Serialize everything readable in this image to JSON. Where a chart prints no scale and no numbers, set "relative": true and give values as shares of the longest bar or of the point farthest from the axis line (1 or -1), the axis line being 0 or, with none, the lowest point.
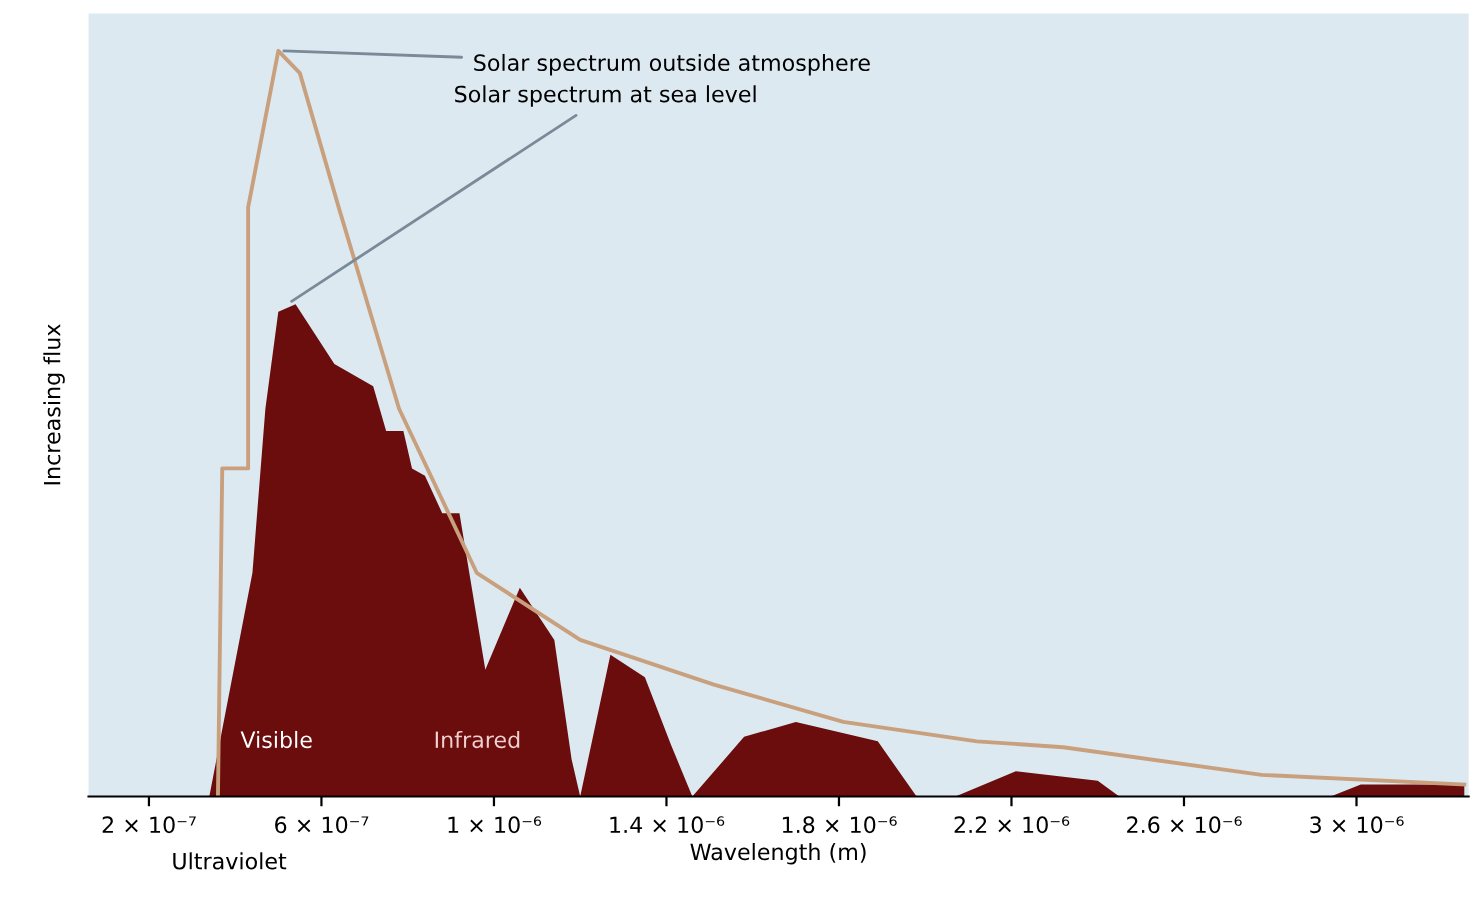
{
  "chart_data": {
    "type": "area",
    "relative": true,
    "xlabel": "Wavelength (m)",
    "ylabel": "Increasing flux",
    "xlim": [
      6e-08,
      3.26e-06
    ],
    "xticks": [
      {
        "value": 2e-07,
        "label": "2 × 10⁻⁷"
      },
      {
        "value": 6e-07,
        "label": "6 × 10⁻⁷"
      },
      {
        "value": 1e-06,
        "label": "1 × 10⁻⁶"
      },
      {
        "value": 1.4e-06,
        "label": "1.4 × 10⁻⁶"
      },
      {
        "value": 1.8e-06,
        "label": "1.8 × 10⁻⁶"
      },
      {
        "value": 2.2e-06,
        "label": "2.2 × 10⁻⁶"
      },
      {
        "value": 2.6e-06,
        "label": "2.6 × 10⁻⁶"
      },
      {
        "value": 3e-06,
        "label": "3 × 10⁻⁶"
      }
    ],
    "series": [
      {
        "type": "line",
        "color": "#c9a07e",
        "x": [
          3.6e-07,
          3.7e-07,
          4.3e-07,
          4.3e-07,
          5e-07,
          5.5e-07,
          6.4e-07,
          7.8e-07,
          9.6e-07,
          1.2e-06,
          1.51e-06,
          1.81e-06,
          2.12e-06,
          2.32e-06,
          2.78e-06,
          3.25e-06
        ],
        "values": [
          0,
          0.44,
          0.44,
          0.79,
          1,
          0.97,
          0.79,
          0.52,
          0.3,
          0.21,
          0.15,
          0.1,
          0.074,
          0.066,
          0.029,
          0.016
        ]
      },
      {
        "color": "#6b0d0d",
        "x": [
          3.4e-07,
          4.4e-07,
          4.7e-07,
          5e-07,
          5.4e-07,
          6.3e-07,
          7.2e-07,
          7.5e-07,
          7.9e-07,
          8.1e-07,
          8.4e-07,
          8.8e-07,
          9.2e-07,
          9.8e-07,
          1.06e-06,
          1.14e-06,
          1.18e-06,
          1.2e-06,
          1.27e-06,
          1.35e-06,
          1.41e-06,
          1.46e-06,
          1.58e-06,
          1.7e-06,
          1.89e-06,
          1.98e-06,
          2.07e-06,
          2.21e-06,
          2.4e-06,
          2.45e-06,
          2.94e-06,
          3.01e-06,
          3.25e-06
        ],
        "values": [
          0,
          0.3,
          0.52,
          0.65,
          0.66,
          0.58,
          0.55,
          0.49,
          0.49,
          0.44,
          0.43,
          0.38,
          0.38,
          0.17,
          0.28,
          0.21,
          0.05,
          0,
          0.19,
          0.16,
          0.07,
          0,
          0.08,
          0.1,
          0.074,
          0,
          0,
          0.034,
          0.021,
          0,
          0,
          0.016,
          0.016
        ]
      }
    ],
    "annotations": [
      {
        "text": "Solar spectrum outside atmosphere",
        "x": 5e-07,
        "y": 1
      },
      {
        "text": "Solar spectrum at sea level",
        "x": 5.2e-07,
        "y": 0.66
      },
      "Visible",
      "Infrared",
      "Ultraviolet"
    ]
  }
}
